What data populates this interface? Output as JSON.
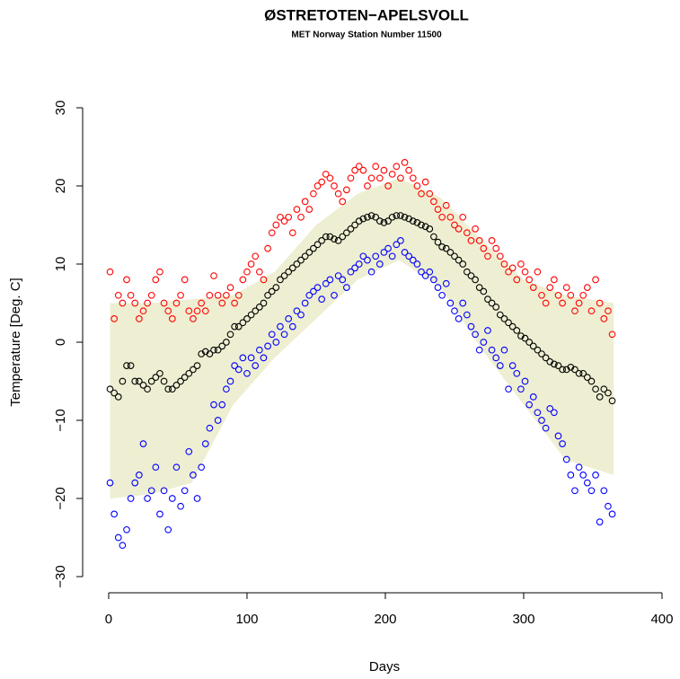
{
  "chart_data": {
    "type": "scatter",
    "title": "ØSTRETOTEN−APELSVOLL",
    "subtitle": "MET Norway Station Number 11500",
    "xlabel": "Days",
    "ylabel": "Temperature [Deg. C]",
    "xlim": [
      -12,
      408
    ],
    "ylim": [
      -32,
      32
    ],
    "xticks": [
      0,
      100,
      200,
      300,
      400
    ],
    "yticks": [
      {
        "value": -30,
        "label": "−30"
      },
      {
        "value": -20,
        "label": "−20"
      },
      {
        "value": -10,
        "label": "−10"
      },
      0,
      10,
      20,
      30
    ],
    "band": {
      "color": "#eeeed2",
      "x": [
        1,
        30,
        60,
        90,
        120,
        150,
        180,
        210,
        240,
        270,
        300,
        330,
        365
      ],
      "upper": [
        5,
        5,
        5.5,
        6,
        9,
        15,
        19,
        21,
        18.5,
        13,
        8,
        6,
        5
      ],
      "lower": [
        -20,
        -19.5,
        -18,
        -8,
        -2,
        3,
        8,
        10.5,
        7,
        -1,
        -8,
        -15,
        -17
      ]
    },
    "x": [
      1,
      4,
      7,
      10,
      13,
      16,
      19,
      22,
      25,
      28,
      31,
      34,
      37,
      40,
      43,
      46,
      49,
      52,
      55,
      58,
      61,
      64,
      67,
      70,
      73,
      76,
      79,
      82,
      85,
      88,
      91,
      94,
      97,
      100,
      103,
      106,
      109,
      112,
      115,
      118,
      121,
      124,
      127,
      130,
      133,
      136,
      139,
      142,
      145,
      148,
      151,
      154,
      157,
      160,
      163,
      166,
      169,
      172,
      175,
      178,
      181,
      184,
      187,
      190,
      193,
      196,
      199,
      202,
      205,
      208,
      211,
      214,
      217,
      220,
      223,
      226,
      229,
      232,
      235,
      238,
      241,
      244,
      247,
      250,
      253,
      256,
      259,
      262,
      265,
      268,
      271,
      274,
      277,
      280,
      283,
      286,
      289,
      292,
      295,
      298,
      301,
      304,
      307,
      310,
      313,
      316,
      319,
      322,
      325,
      328,
      331,
      334,
      337,
      340,
      343,
      346,
      349,
      352,
      355,
      358,
      361,
      364
    ],
    "series": [
      {
        "color": "#ff0000",
        "values": [
          9,
          3,
          6,
          5,
          8,
          6,
          5,
          3,
          4,
          5,
          6,
          8,
          9,
          5,
          4,
          3,
          5,
          6,
          8,
          4,
          3,
          4,
          5,
          4,
          6,
          8.5,
          6,
          5,
          6,
          7,
          5,
          6,
          8,
          9,
          10,
          11,
          9,
          8,
          12,
          14,
          15,
          16,
          15.5,
          16,
          14,
          17,
          16,
          18,
          17,
          19,
          20,
          20.5,
          21.5,
          21,
          20,
          19,
          18,
          19.5,
          21,
          22,
          22.5,
          22,
          20,
          21,
          22.5,
          21,
          22,
          20,
          21.5,
          22.5,
          21,
          23,
          22,
          21,
          20,
          19,
          20.5,
          19,
          18,
          17,
          16,
          17.5,
          16,
          15,
          14.5,
          16,
          14,
          13,
          14.5,
          13,
          12,
          11,
          13,
          12,
          11,
          10,
          9,
          9.5,
          8,
          10,
          9,
          8,
          7,
          9,
          6,
          5,
          7,
          8,
          6,
          5,
          7,
          6,
          4,
          5,
          6,
          7,
          4,
          8,
          5,
          3,
          4,
          1
        ]
      },
      {
        "color": "#000000",
        "values": [
          -6,
          -6.5,
          -7,
          -5,
          -3,
          -3,
          -5,
          -5,
          -5.5,
          -6,
          -5,
          -4.5,
          -4,
          -5,
          -6,
          -6,
          -5.5,
          -5,
          -4.5,
          -4,
          -3.5,
          -3,
          -1.5,
          -1.2,
          -1.5,
          -1,
          -1,
          -0.5,
          0,
          1,
          2,
          2,
          2.5,
          3,
          3.5,
          4,
          4.5,
          5,
          6,
          6.5,
          7,
          8,
          8.5,
          9,
          9.5,
          10,
          10.5,
          11,
          11.5,
          12,
          12.5,
          13,
          13.5,
          13.5,
          13.2,
          13,
          13.5,
          14,
          14.5,
          15,
          15.5,
          15.8,
          16,
          16.2,
          16,
          15.5,
          15.3,
          15.5,
          16,
          16.2,
          16.2,
          16,
          15.8,
          15.5,
          15.3,
          15,
          14.8,
          14.5,
          13.5,
          12.8,
          12.2,
          12,
          11.5,
          11,
          10.5,
          10,
          9,
          8.5,
          8,
          7,
          6.5,
          5.5,
          5,
          4.5,
          3.5,
          3,
          2.5,
          2,
          1.5,
          0.8,
          0.5,
          0,
          -0.5,
          -1,
          -1.5,
          -2,
          -2.5,
          -2.8,
          -3,
          -3.5,
          -3.5,
          -3.2,
          -3.5,
          -4,
          -4,
          -4.5,
          -5,
          -6,
          -7,
          -6,
          -6.5,
          -7.5
        ]
      },
      {
        "color": "#0000ff",
        "values": [
          -18,
          -22,
          -25,
          -26,
          -24,
          -20,
          -18,
          -17,
          -13,
          -20,
          -19,
          -16,
          -22,
          -19,
          -24,
          -20,
          -16,
          -21,
          -19,
          -14,
          -17,
          -20,
          -16,
          -13,
          -11,
          -8,
          -10,
          -8,
          -6,
          -5,
          -3,
          -3.5,
          -2,
          -4,
          -2,
          -3,
          -1,
          -2,
          -0.5,
          1,
          0,
          2,
          1,
          3,
          2,
          4,
          3.5,
          5,
          6,
          6.5,
          7,
          5.5,
          7.5,
          8,
          6,
          8.5,
          8,
          7,
          9,
          9.5,
          10,
          11,
          10.5,
          9,
          11,
          10,
          11.5,
          12,
          11,
          12.5,
          13,
          11.5,
          11,
          10.5,
          10,
          9,
          8.5,
          9,
          8,
          7,
          6,
          7.5,
          5,
          4,
          3,
          5,
          3.5,
          2,
          1,
          -1,
          0,
          1.5,
          -1,
          -2,
          -3,
          -1,
          -6,
          -3,
          -4,
          -6,
          -5,
          -8,
          -7,
          -9,
          -10,
          -11,
          -8.5,
          -9,
          -12,
          -13,
          -15,
          -17,
          -19,
          -16,
          -17,
          -18,
          -19,
          -17,
          -23,
          -19,
          -21,
          -22
        ]
      }
    ]
  }
}
